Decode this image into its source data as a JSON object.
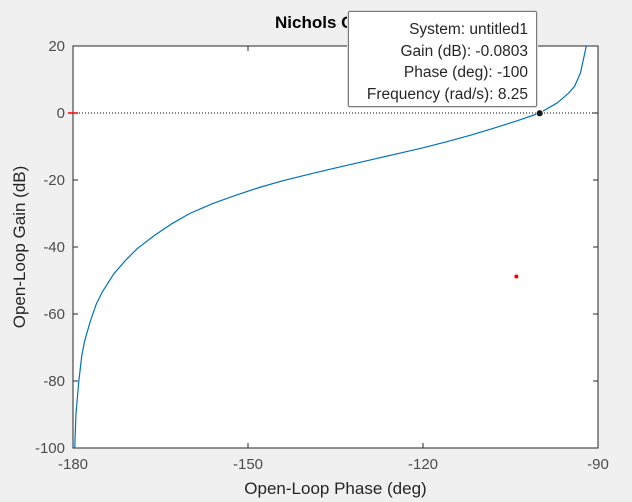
{
  "chart_data": {
    "type": "line",
    "title": "Nichols C",
    "xlabel": "Open-Loop Phase (deg)",
    "ylabel": "Open-Loop Gain (dB)",
    "xlim": [
      -180,
      -90
    ],
    "ylim": [
      -100,
      20
    ],
    "xticks": [
      -180,
      -150,
      -120,
      -90
    ],
    "yticks": [
      20,
      0,
      -20,
      -40,
      -60,
      -80,
      -100
    ],
    "grid": false,
    "series": [
      {
        "color": "#0072bd",
        "x": [
          -179.7,
          -179.5,
          -179.0,
          -178.5,
          -178.0,
          -177.0,
          -176.0,
          -175.0,
          -173.0,
          -171.0,
          -169.0,
          -166.0,
          -163.0,
          -160.0,
          -156.0,
          -152.0,
          -148.0,
          -144.0,
          -140.0,
          -136.0,
          -132.0,
          -128.0,
          -124.0,
          -120.0,
          -116.0,
          -112.0,
          -108.0,
          -104.0,
          -100.0,
          -97.0,
          -95.0,
          -94.0,
          -93.0,
          -92.5,
          -92.0
        ],
        "y": [
          -100.0,
          -90.0,
          -80.0,
          -72.5,
          -68.0,
          -62.0,
          -57.0,
          -53.5,
          -48.0,
          -44.0,
          -40.5,
          -36.5,
          -33.0,
          -30.0,
          -27.0,
          -24.5,
          -22.2,
          -20.2,
          -18.5,
          -16.8,
          -15.2,
          -13.6,
          -12.0,
          -10.4,
          -8.6,
          -6.7,
          -4.6,
          -2.4,
          0.0,
          3.0,
          6.0,
          8.0,
          12.0,
          16.0,
          20.0
        ]
      }
    ],
    "reference_lines": [
      {
        "axis": "y",
        "value": 0,
        "color": "#000000",
        "style": "dotted"
      }
    ],
    "markers": [
      {
        "x": -180,
        "y": 0,
        "color": "#ff0000",
        "shape": "plus"
      },
      {
        "x": -104,
        "y": -48.8,
        "color": "#ff0000",
        "shape": "dot"
      }
    ],
    "selected_point": {
      "x": -100,
      "y": -0.0803
    }
  },
  "datatip": {
    "system": "System: untitled1",
    "gain": "Gain (dB): -0.0803",
    "phase": "Phase (deg): -100",
    "frequency": "Frequency (rad/s): 8.25"
  }
}
